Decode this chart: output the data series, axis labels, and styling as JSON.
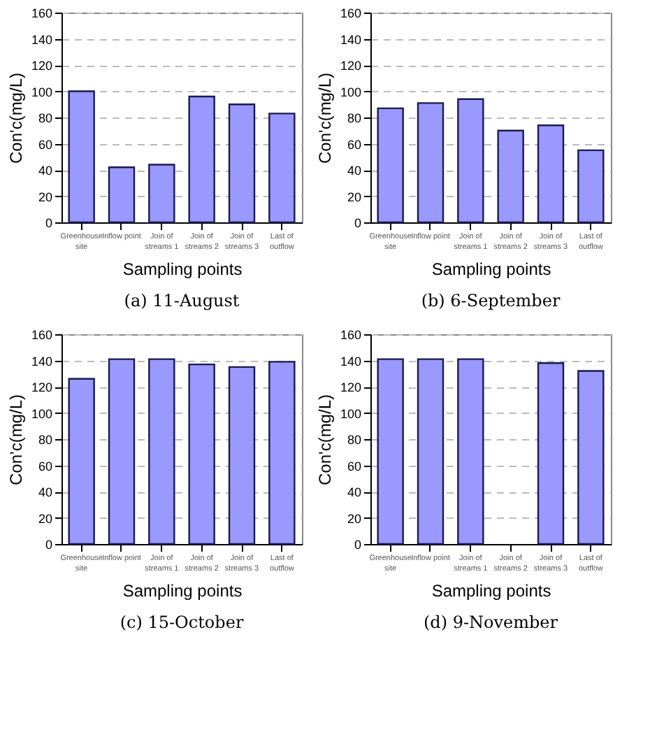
{
  "chart_data": [
    {
      "type": "bar",
      "title": "(a)  11-August",
      "xlabel": "Sampling points",
      "ylabel": "Con'c(mg/L)",
      "categories": [
        "Greenhouse\nsite",
        "Inflow point",
        "Join of\nstreams 1",
        "Join of\nstreams 2",
        "Join of\nstreams 3",
        "Last of\noutflow"
      ],
      "values": [
        100,
        42,
        44,
        96,
        90,
        83
      ],
      "color": "#9999ff",
      "ylim": [
        0,
        160
      ],
      "yticks": [
        0,
        20,
        40,
        60,
        80,
        100,
        120,
        140,
        160
      ],
      "grid": "y"
    },
    {
      "type": "bar",
      "title": "(b)  6-September",
      "xlabel": "Sampling points",
      "ylabel": "Con'c(mg/L)",
      "categories": [
        "Greenhouse\nsite",
        "Inflow point",
        "Join of\nstreams 1",
        "Join of\nstreams 2",
        "Join of\nstreams 3",
        "Last of\noutflow"
      ],
      "values": [
        87,
        91,
        94,
        70,
        74,
        55
      ],
      "color": "#9999ff",
      "ylim": [
        0,
        160
      ],
      "yticks": [
        0,
        20,
        40,
        60,
        80,
        100,
        120,
        140,
        160
      ],
      "grid": "y"
    },
    {
      "type": "bar",
      "title": "(c)  15-October",
      "xlabel": "Sampling points",
      "ylabel": "Con'c(mg/L)",
      "categories": [
        "Greenhouse\nsite",
        "Inflow point",
        "Join of\nstreams 1",
        "Join of\nstreams 2",
        "Join of\nstreams 3",
        "Last of\noutflow"
      ],
      "values": [
        126,
        141,
        141,
        137,
        135,
        139
      ],
      "color": "#9999ff",
      "ylim": [
        0,
        160
      ],
      "yticks": [
        0,
        20,
        40,
        60,
        80,
        100,
        120,
        140,
        160
      ],
      "grid": "y"
    },
    {
      "type": "bar",
      "title": "(d)  9-November",
      "xlabel": "Sampling points",
      "ylabel": "Con'c(mg/L)",
      "categories": [
        "Greenhouse\nsite",
        "Inflow point",
        "Join of\nstreams 1",
        "Join of\nstreams 2",
        "Join of\nstreams 3",
        "Last of\noutflow"
      ],
      "values": [
        141,
        141,
        141,
        null,
        138,
        132
      ],
      "color": "#9999ff",
      "ylim": [
        0,
        160
      ],
      "yticks": [
        0,
        20,
        40,
        60,
        80,
        100,
        120,
        140,
        160
      ],
      "grid": "y"
    }
  ]
}
